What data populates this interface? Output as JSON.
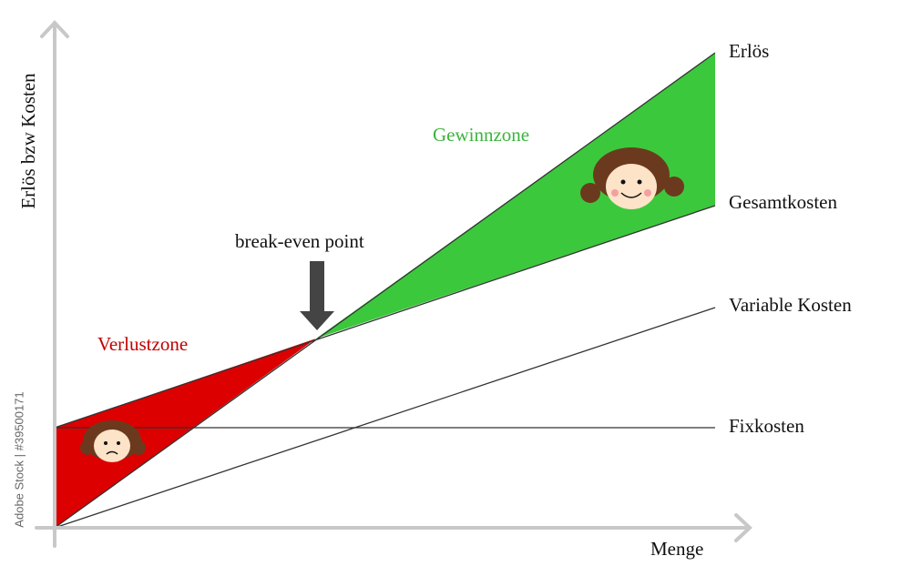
{
  "labels": {
    "revenue": "Erlös",
    "total_costs": "Gesamtkosten",
    "variable_costs": "Variable Kosten",
    "fixed_costs": "Fixkosten"
  },
  "zones": {
    "profit": "Gewinnzone",
    "loss": "Verlustzone"
  },
  "break_even": "break-even point",
  "axes": {
    "y": "Erlös bzw Kosten",
    "x": "Menge"
  },
  "watermark": "Adobe Stock | #39500171"
}
